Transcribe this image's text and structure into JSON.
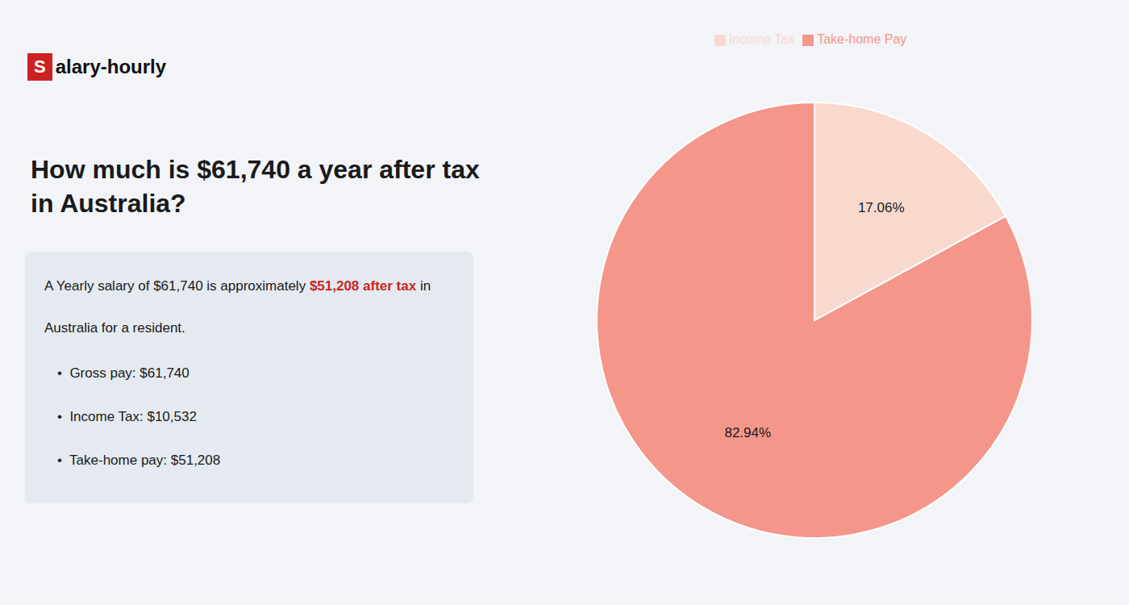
{
  "chart_data": {
    "type": "pie",
    "title": "How much is $61,740 a year after tax in Australia?",
    "annotations": [
      "S",
      "alary-hourly",
      "A Yearly salary of $61,740 is approximately ",
      "$51,208 after tax",
      " in",
      "Australia for a resident.",
      "•  Gross pay: $61,740",
      "•  Income Tax: $10,532",
      "•  Take-home pay: $51,208"
    ],
    "categories": [
      "Income Tax",
      "Take-home Pay"
    ],
    "values": [
      17.06,
      82.94
    ],
    "value_labels": [
      "17.06%",
      "82.94%"
    ],
    "colors": [
      "#f9d9ce",
      "#f4968a"
    ],
    "data_labels": true,
    "legend": "top"
  }
}
